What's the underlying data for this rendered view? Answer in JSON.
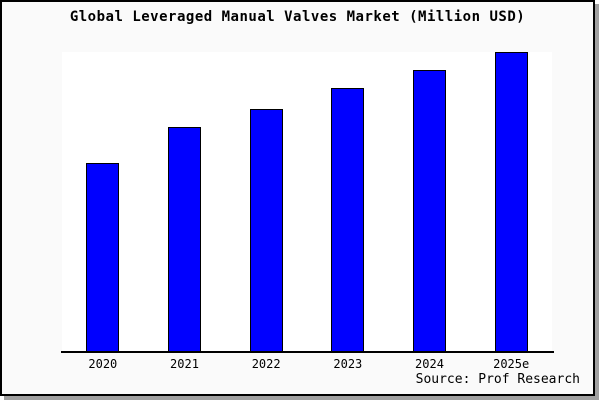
{
  "window": {
    "background": "#fafafa",
    "border_color": "#000000",
    "shadow_color": "#a0a0a0"
  },
  "chart_data": {
    "type": "bar",
    "title": "Global Leveraged Manual Valves Market (Million USD)",
    "categories": [
      "2020",
      "2021",
      "2022",
      "2023",
      "2024",
      "2025e"
    ],
    "values": [
      63,
      75,
      81,
      88,
      94,
      100
    ],
    "xlabel": "",
    "ylabel": "",
    "ylim": [
      0,
      100
    ],
    "y_axis_visible": false,
    "grid": false,
    "legend": "none",
    "bar_color": "#0000ff",
    "bar_border_color": "#000000",
    "plot_background": "#ffffff"
  },
  "source_note": "Source: Prof Research"
}
